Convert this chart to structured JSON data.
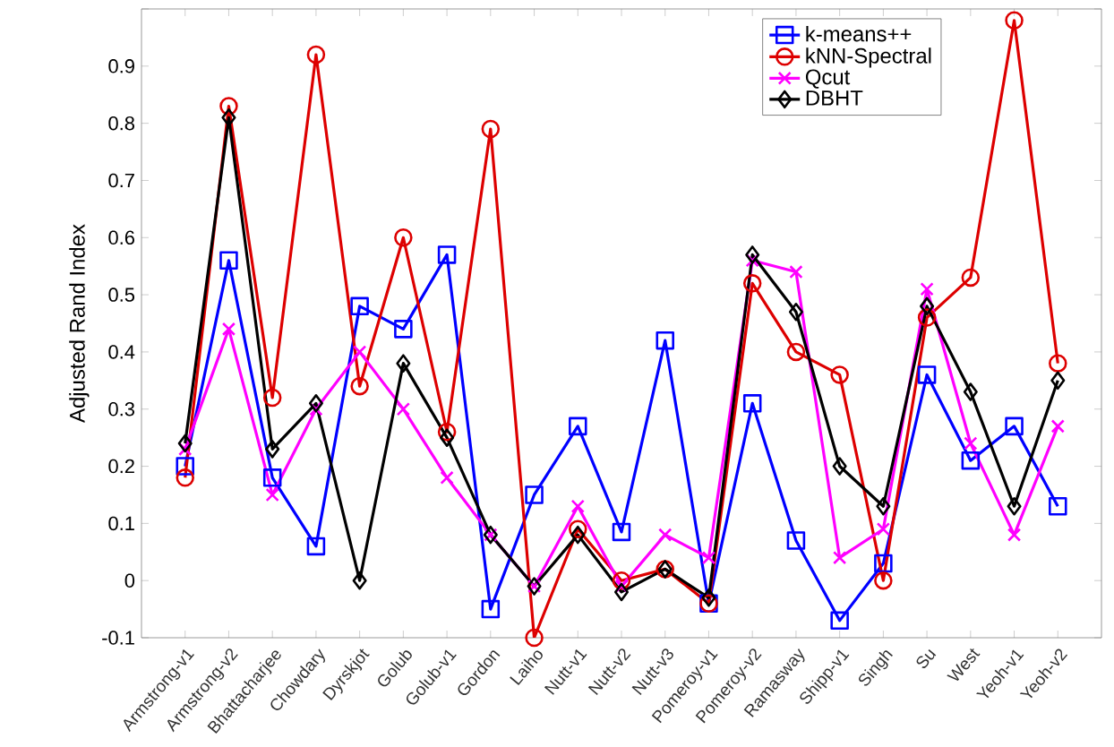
{
  "chart_data": {
    "type": "line",
    "ylabel": "Adjusted Rand Index",
    "categories": [
      "Armstrong-v1",
      "Armstrong-v2",
      "Bhattacharjee",
      "Chowdary",
      "Dyrskjot",
      "Golub",
      "Golub-v1",
      "Gordon",
      "Laiho",
      "Nutt-v1",
      "Nutt-v2",
      "Nutt-v3",
      "Pomeroy-v1",
      "Pomeroy-v2",
      "Ramasway",
      "Shipp-v1",
      "Singh",
      "Su",
      "West",
      "Yeoh-v1",
      "Yeoh-v2"
    ],
    "series": [
      {
        "name": "k-means++",
        "color": "#0000ff",
        "marker": "square",
        "values": [
          0.2,
          0.56,
          0.18,
          0.06,
          0.48,
          0.44,
          0.57,
          -0.05,
          0.15,
          0.27,
          0.085,
          0.42,
          -0.04,
          0.31,
          0.07,
          -0.07,
          0.03,
          0.36,
          0.21,
          0.27,
          0.13
        ]
      },
      {
        "name": "kNN-Spectral",
        "color": "#dd0000",
        "marker": "circle",
        "values": [
          0.18,
          0.83,
          0.32,
          0.92,
          0.34,
          0.6,
          0.26,
          0.79,
          -0.1,
          0.09,
          0.0,
          0.02,
          -0.04,
          0.52,
          0.4,
          0.36,
          0.0,
          0.46,
          0.53,
          0.98,
          0.38
        ]
      },
      {
        "name": "Qcut",
        "color": "#ff00ff",
        "marker": "cross",
        "values": [
          0.23,
          0.44,
          0.15,
          0.3,
          0.4,
          0.3,
          0.18,
          0.08,
          -0.01,
          0.13,
          -0.01,
          0.08,
          0.04,
          0.56,
          0.54,
          0.04,
          0.09,
          0.51,
          0.24,
          0.08,
          0.27
        ]
      },
      {
        "name": "DBHT",
        "color": "#000000",
        "marker": "diamond",
        "values": [
          0.24,
          0.81,
          0.23,
          0.31,
          0.0,
          0.38,
          0.25,
          0.08,
          -0.01,
          0.08,
          -0.02,
          0.02,
          -0.03,
          0.57,
          0.47,
          0.2,
          0.13,
          0.48,
          0.33,
          0.13,
          0.35
        ]
      }
    ],
    "ylim": [
      -0.1,
      1.0
    ],
    "yticks": [
      -0.1,
      0,
      0.1,
      0.2,
      0.3,
      0.4,
      0.5,
      0.6,
      0.7,
      0.8,
      0.9,
      {
        "value": 1.0,
        "label": null
      }
    ],
    "legend": "top right",
    "line_style": "solid"
  }
}
